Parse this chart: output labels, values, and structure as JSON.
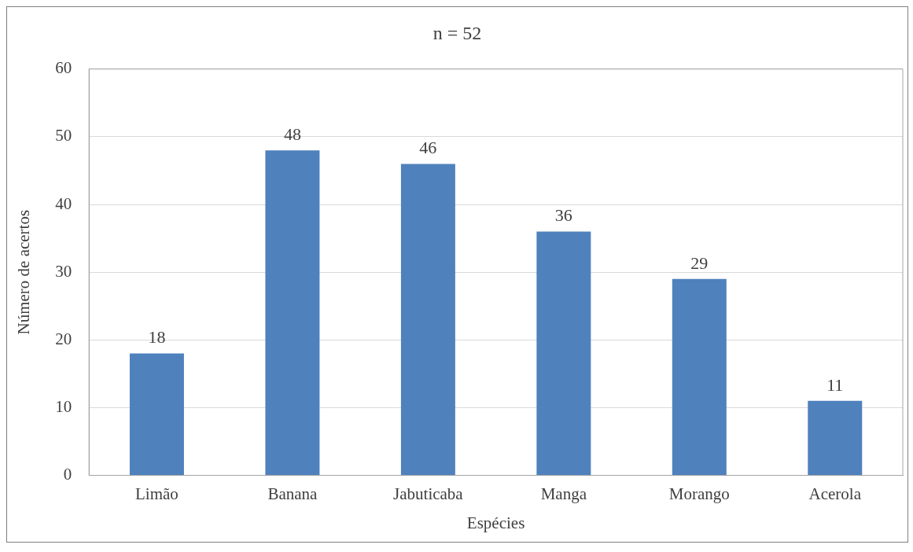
{
  "chart_data": {
    "type": "bar",
    "title": "n = 52",
    "xlabel": "Espécies",
    "ylabel": "Número de acertos",
    "categories": [
      "Limão",
      "Banana",
      "Jabuticaba",
      "Manga",
      "Morango",
      "Acerola"
    ],
    "values": [
      18,
      48,
      46,
      36,
      29,
      11
    ],
    "color": "#4f81bd",
    "ylim": [
      0,
      60
    ],
    "yticks": [
      0,
      10,
      20,
      30,
      40,
      50,
      60
    ],
    "grid": "y",
    "legend": false,
    "data_labels": true
  }
}
